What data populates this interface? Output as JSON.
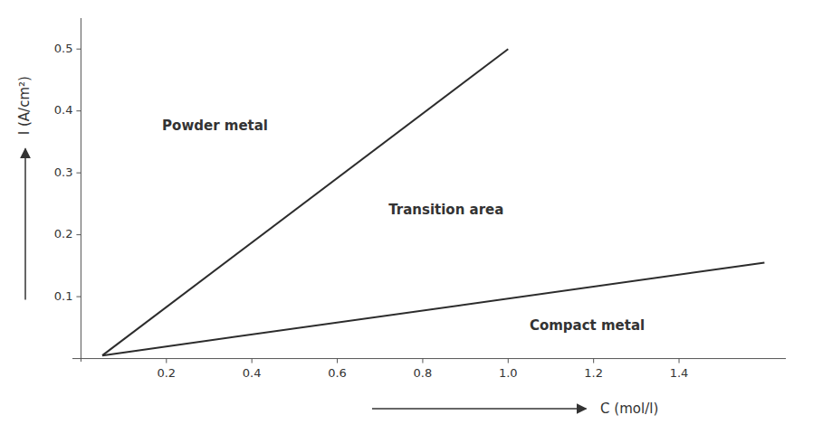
{
  "chart_data": {
    "type": "line",
    "xlabel": "C (mol/l)",
    "ylabel": "I (A/cm²)",
    "series": [
      {
        "x": [
          0.05,
          1.0
        ],
        "values": [
          0.005,
          0.5
        ],
        "color": "#2c2c2c"
      },
      {
        "x": [
          0.05,
          1.6
        ],
        "values": [
          0.005,
          0.155
        ],
        "color": "#2c2c2c"
      }
    ],
    "xlim": [
      -0.02,
      1.65
    ],
    "ylim": [
      -0.005,
      0.55
    ],
    "xticks": [
      0.2,
      0.4,
      0.6,
      0.8,
      {
        "value": 1.0,
        "label": "1.0"
      },
      1.2,
      1.4
    ],
    "yticks": [
      0.1,
      0.2,
      0.3,
      0.4,
      0.5
    ],
    "grid": false,
    "annotations": [
      {
        "text": "Powder metal",
        "x": 0.19,
        "y": 0.375
      },
      {
        "text": "Transition area",
        "x": 0.72,
        "y": 0.24
      },
      {
        "text": "Compact metal",
        "x": 1.05,
        "y": 0.052
      }
    ]
  }
}
